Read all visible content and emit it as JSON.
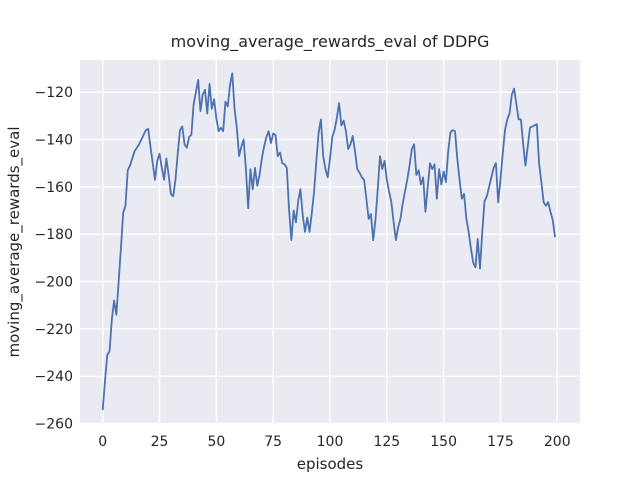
{
  "figure": {
    "background": "#ffffff",
    "axes_background": "#eaeaf2",
    "grid_color": "#ffffff",
    "text_color": "#262626",
    "line_color": "#4c72b0"
  },
  "chart_data": {
    "type": "line",
    "title": "moving_average_rewards_eval of DDPG",
    "xlabel": "episodes",
    "ylabel": "moving_average_rewards_eval",
    "grid": true,
    "legend_position": "none",
    "xlim": [
      -10,
      210
    ],
    "ylim": [
      -260.2,
      -106.4
    ],
    "xticks": {
      "values": [
        0,
        25,
        50,
        75,
        100,
        125,
        150,
        175,
        200
      ],
      "labels": [
        "0",
        "25",
        "50",
        "75",
        "100",
        "125",
        "150",
        "175",
        "200"
      ]
    },
    "yticks": {
      "values": [
        -260,
        -240,
        -220,
        -200,
        -180,
        -160,
        -140,
        -120
      ],
      "labels": [
        "−260",
        "−240",
        "−220",
        "−200",
        "−180",
        "−160",
        "−140",
        "−120"
      ]
    },
    "series": [
      {
        "name": "moving_average_rewards_eval",
        "color": "#4c72b0",
        "line_width": 1.8,
        "x_start": 0,
        "x_step": 1,
        "y": [
          -254,
          -242,
          -231,
          -229.5,
          -216,
          -208,
          -214,
          -200,
          -186,
          -171,
          -168,
          -153,
          -151,
          -148,
          -145,
          -143.5,
          -142,
          -140,
          -138,
          -136,
          -135.5,
          -143,
          -150,
          -157,
          -149,
          -146,
          -152,
          -157,
          -148,
          -155,
          -163,
          -164,
          -157,
          -146,
          -136,
          -134.5,
          -142,
          -143.5,
          -139,
          -138,
          -125,
          -120,
          -114.8,
          -128,
          -121,
          -119,
          -129,
          -116.5,
          -127,
          -123,
          -131,
          -136.5,
          -135,
          -136.5,
          -124,
          -126,
          -117,
          -112,
          -127,
          -135,
          -147,
          -143,
          -140,
          -152.5,
          -169,
          -152.5,
          -161,
          -152,
          -159.5,
          -155,
          -148,
          -143,
          -139,
          -136.5,
          -141.5,
          -137.5,
          -138,
          -147,
          -145.5,
          -150,
          -150.5,
          -152,
          -170,
          -182.5,
          -170,
          -175,
          -166,
          -161,
          -172,
          -179,
          -173,
          -179,
          -171,
          -162,
          -149,
          -137,
          -131.5,
          -147,
          -152.5,
          -156,
          -148,
          -139,
          -136,
          -131,
          -124.6,
          -134,
          -132,
          -136.5,
          -144,
          -142,
          -138.5,
          -145,
          -152.5,
          -154,
          -156,
          -157,
          -165,
          -173.5,
          -171.5,
          -182.5,
          -174,
          -161,
          -147,
          -152.5,
          -149,
          -157,
          -162,
          -166.5,
          -175,
          -182.5,
          -177,
          -173.5,
          -167,
          -162,
          -157,
          -151,
          -144,
          -142,
          -155,
          -153,
          -159,
          -156,
          -170.5,
          -160,
          -150,
          -152.5,
          -150.5,
          -165,
          -152.5,
          -159,
          -153.5,
          -158,
          -145,
          -137,
          -136,
          -136.5,
          -148,
          -157,
          -165,
          -163,
          -173.5,
          -179,
          -186,
          -192,
          -194,
          -182,
          -194.5,
          -179,
          -166,
          -164,
          -160,
          -156,
          -152,
          -150,
          -166.5,
          -157,
          -146,
          -136,
          -131.5,
          -129,
          -121,
          -118.5,
          -125,
          -131.5,
          -131.5,
          -142,
          -151,
          -143,
          -135,
          -134.5,
          -134,
          -133.5,
          -150,
          -158,
          -166.5,
          -168,
          -166.5,
          -170.5,
          -174,
          -181
        ]
      }
    ]
  }
}
